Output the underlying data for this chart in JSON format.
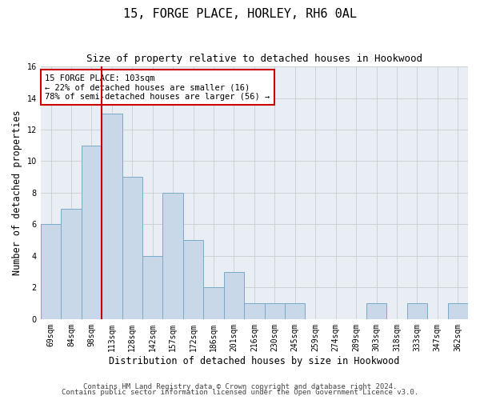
{
  "title": "15, FORGE PLACE, HORLEY, RH6 0AL",
  "subtitle": "Size of property relative to detached houses in Hookwood",
  "xlabel": "Distribution of detached houses by size in Hookwood",
  "ylabel": "Number of detached properties",
  "categories": [
    "69sqm",
    "84sqm",
    "98sqm",
    "113sqm",
    "128sqm",
    "142sqm",
    "157sqm",
    "172sqm",
    "186sqm",
    "201sqm",
    "216sqm",
    "230sqm",
    "245sqm",
    "259sqm",
    "274sqm",
    "289sqm",
    "303sqm",
    "318sqm",
    "333sqm",
    "347sqm",
    "362sqm"
  ],
  "values": [
    6,
    7,
    11,
    13,
    9,
    4,
    8,
    5,
    2,
    3,
    1,
    1,
    1,
    0,
    0,
    0,
    1,
    0,
    1,
    0,
    1
  ],
  "bar_color": "#c8d8e8",
  "bar_edge_color": "#7aaac8",
  "ref_line_x": 2.5,
  "ref_line_color": "#cc0000",
  "annotation_text": "15 FORGE PLACE: 103sqm\n← 22% of detached houses are smaller (16)\n78% of semi-detached houses are larger (56) →",
  "annotation_box_color": "#ffffff",
  "annotation_box_edge_color": "#cc0000",
  "ylim": [
    0,
    16
  ],
  "yticks": [
    0,
    2,
    4,
    6,
    8,
    10,
    12,
    14,
    16
  ],
  "grid_color": "#cccccc",
  "footer_line1": "Contains HM Land Registry data © Crown copyright and database right 2024.",
  "footer_line2": "Contains public sector information licensed under the Open Government Licence v3.0.",
  "title_fontsize": 11,
  "subtitle_fontsize": 9,
  "xlabel_fontsize": 8.5,
  "ylabel_fontsize": 8.5,
  "tick_fontsize": 7,
  "annotation_fontsize": 7.5,
  "footer_fontsize": 6.5,
  "bg_color": "#e8eef4"
}
